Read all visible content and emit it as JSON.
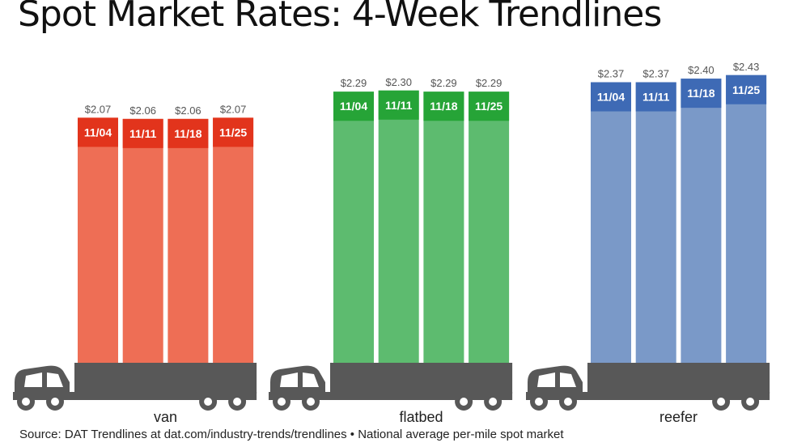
{
  "chart_data": {
    "type": "bar",
    "title": "Spot Market Rates: 4-Week Trendlines",
    "source": "Source: DAT Trendlines at dat.com/industry-trends/trendlines • National average per-mile spot market",
    "categories": [
      "11/04",
      "11/11",
      "11/18",
      "11/25"
    ],
    "series": [
      {
        "name": "van",
        "values": [
          2.07,
          2.06,
          2.06,
          2.07
        ],
        "labels": [
          "$2.07",
          "$2.06",
          "$2.06",
          "$2.07"
        ],
        "color": "#ee6e55",
        "header_color": "#e2341c"
      },
      {
        "name": "flatbed",
        "values": [
          2.29,
          2.3,
          2.29,
          2.29
        ],
        "labels": [
          "$2.29",
          "$2.30",
          "$2.29",
          "$2.29"
        ],
        "color": "#5dbb6f",
        "header_color": "#26a437"
      },
      {
        "name": "reefer",
        "values": [
          2.37,
          2.37,
          2.4,
          2.43
        ],
        "labels": [
          "$2.37",
          "$2.37",
          "$2.40",
          "$2.43"
        ],
        "color": "#7a99c8",
        "header_color": "#3e6ab5"
      }
    ],
    "truck_color": "#585858",
    "grid": false
  }
}
